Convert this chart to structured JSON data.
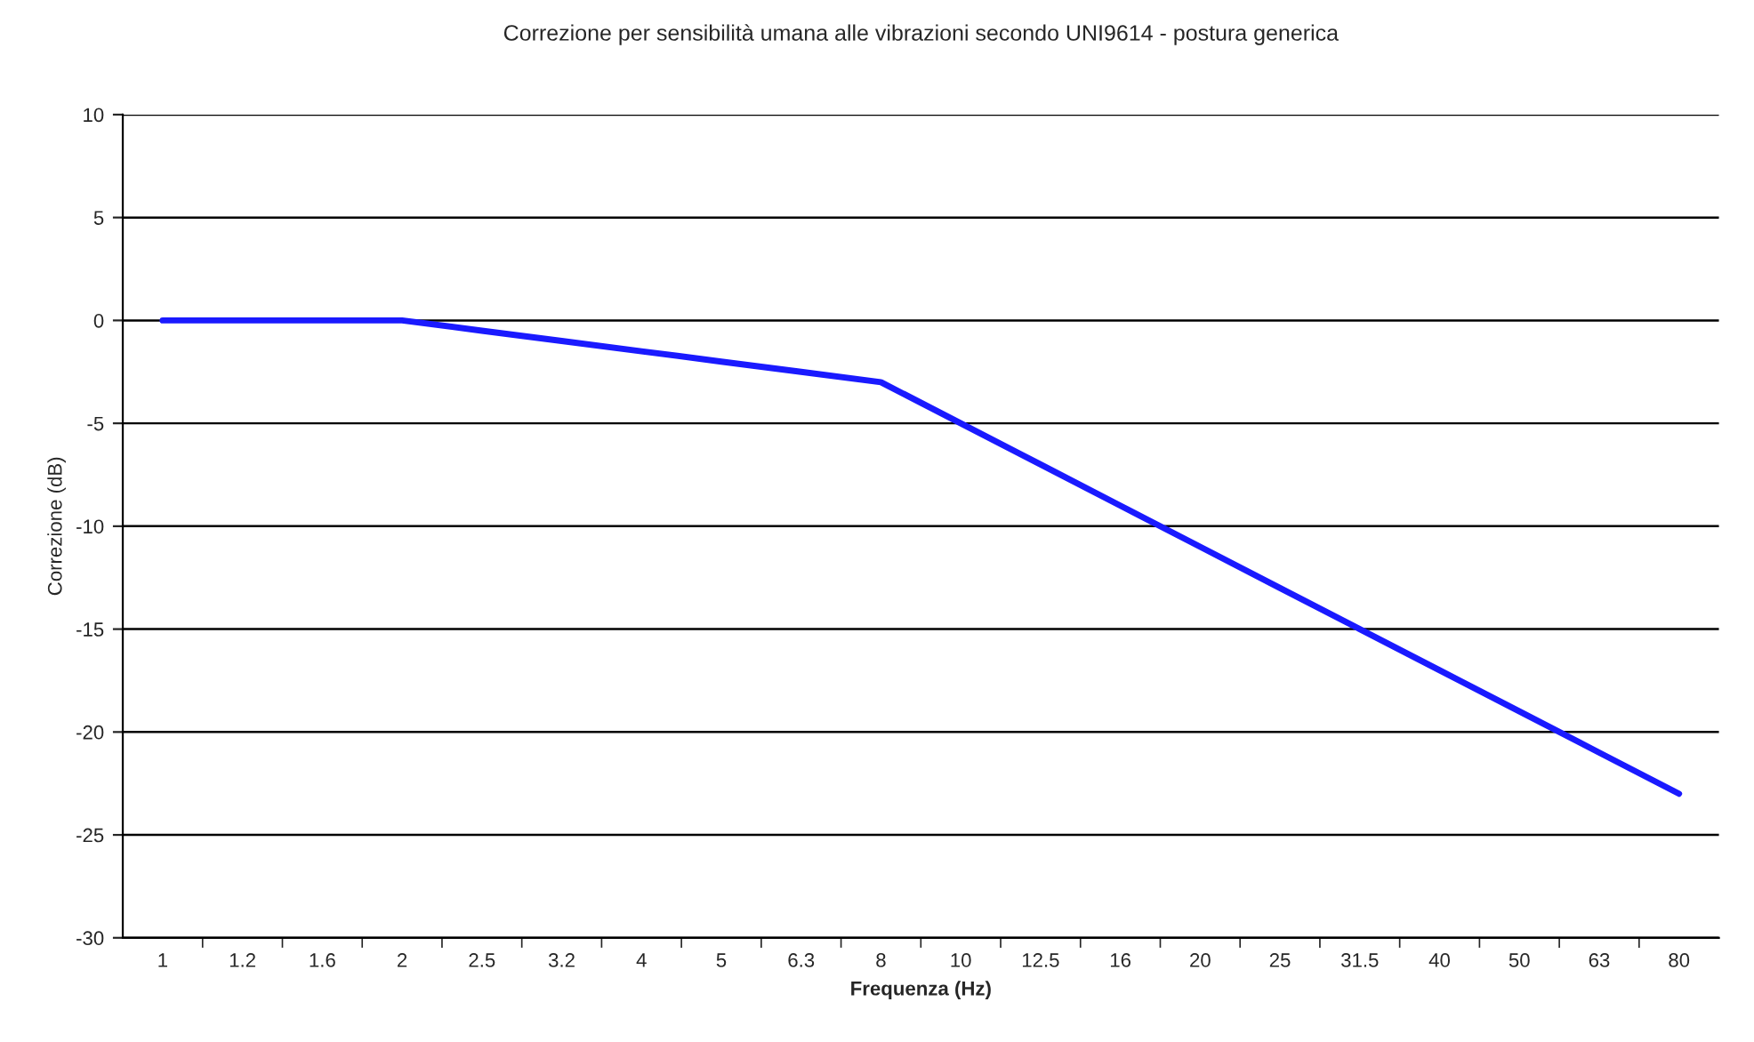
{
  "chart_data": {
    "type": "line",
    "title": "Correzione per sensibilità umana alle vibrazioni secondo UNI9614 - postura generica",
    "xlabel": "Frequenza (Hz)",
    "ylabel": "Correzione (dB)",
    "categories": [
      "1",
      "1.2",
      "1.6",
      "2",
      "2.5",
      "3.2",
      "4",
      "5",
      "6.3",
      "8",
      "10",
      "12.5",
      "16",
      "20",
      "25",
      "31.5",
      "40",
      "50",
      "63",
      "80"
    ],
    "series": [
      {
        "color": "#1a1aff",
        "values": [
          0,
          0,
          0,
          0,
          -0.5,
          -1,
          -1.5,
          -2,
          -2.5,
          -3,
          -5,
          -7,
          -9,
          -11,
          -13,
          -15,
          -17,
          -19,
          -21,
          -23
        ]
      }
    ],
    "ylim": [
      -30,
      10
    ],
    "yticks": [
      -30,
      -25,
      -20,
      -15,
      -10,
      -5,
      0,
      5,
      10
    ],
    "grid": "y",
    "marker": "none",
    "line_style": "solid"
  }
}
